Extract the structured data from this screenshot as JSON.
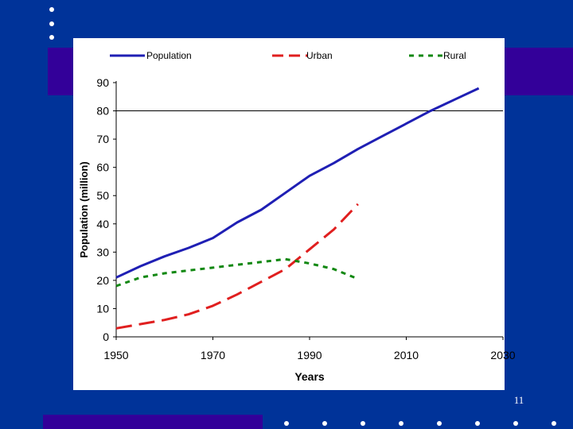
{
  "slide": {
    "number": "11",
    "colors": {
      "background": "#003399",
      "accent": "#330099",
      "dots": "#ffffff",
      "panel": "#ffffff"
    }
  },
  "chart_data": {
    "type": "line",
    "title": "",
    "xlabel": "Years",
    "ylabel": "Population (million)",
    "xlim": [
      1950,
      2030
    ],
    "ylim": [
      0,
      90
    ],
    "xticks": [
      1950,
      1970,
      1990,
      2010,
      2030
    ],
    "yticks": [
      0,
      10,
      20,
      30,
      40,
      50,
      60,
      70,
      80,
      90
    ],
    "grid": "single horizontal line at 80",
    "gridline_value": 80,
    "legend_position": "top",
    "series": [
      {
        "name": "Population",
        "color": "#1f1fb4",
        "style": "solid",
        "x": [
          1950,
          1955,
          1960,
          1965,
          1970,
          1975,
          1980,
          1985,
          1990,
          1995,
          2000,
          2005,
          2010,
          2015,
          2020,
          2025
        ],
        "y": [
          21,
          25,
          28.5,
          31.5,
          35,
          40.5,
          45,
          51,
          57,
          61.5,
          66.5,
          71,
          75.5,
          80,
          84,
          88
        ]
      },
      {
        "name": "Urban",
        "color": "#e01f1f",
        "style": "dashed",
        "x": [
          1950,
          1955,
          1960,
          1965,
          1970,
          1975,
          1980,
          1985,
          1990,
          1995,
          2000
        ],
        "y": [
          3,
          4.5,
          6,
          8,
          11,
          15,
          19.5,
          24,
          31,
          38,
          47
        ]
      },
      {
        "name": "Rural",
        "color": "#118811",
        "style": "dotted",
        "x": [
          1950,
          1955,
          1960,
          1965,
          1970,
          1975,
          1980,
          1985,
          1990,
          1995,
          2000
        ],
        "y": [
          18,
          21,
          22.5,
          23.5,
          24.5,
          25.5,
          26.5,
          27.5,
          26,
          24,
          20.5
        ]
      }
    ]
  }
}
